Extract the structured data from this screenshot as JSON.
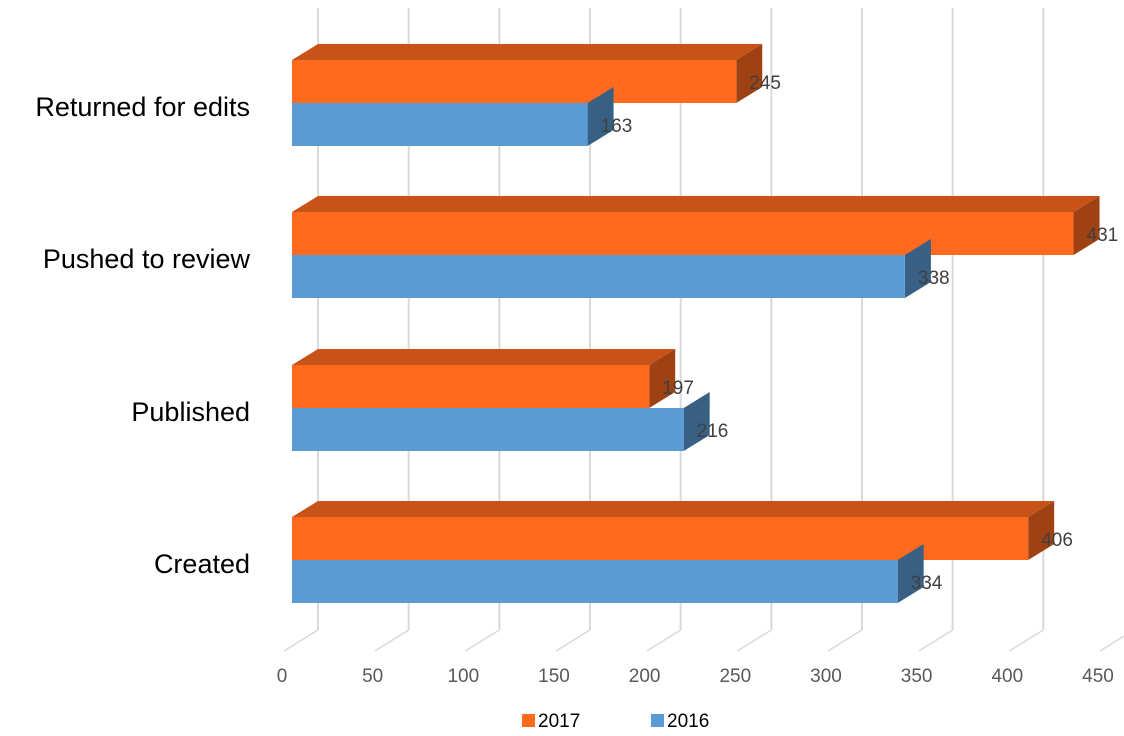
{
  "chart_data": {
    "type": "bar",
    "orientation": "horizontal",
    "style": "3d-clustered",
    "categories": [
      "Returned for edits",
      "Pushed to review",
      "Published",
      "Created"
    ],
    "series": [
      {
        "name": "2017",
        "values": [
          245,
          431,
          197,
          406
        ],
        "color": "#FF6A1F"
      },
      {
        "name": "2016",
        "values": [
          163,
          338,
          216,
          334
        ],
        "color": "#5B9BD5"
      }
    ],
    "xlim": [
      0,
      450
    ],
    "x_ticks": [
      "0",
      "50",
      "100",
      "150",
      "200",
      "250",
      "300",
      "350",
      "400",
      "450"
    ],
    "grid": true,
    "legend_position": "bottom",
    "data_labels": true
  }
}
